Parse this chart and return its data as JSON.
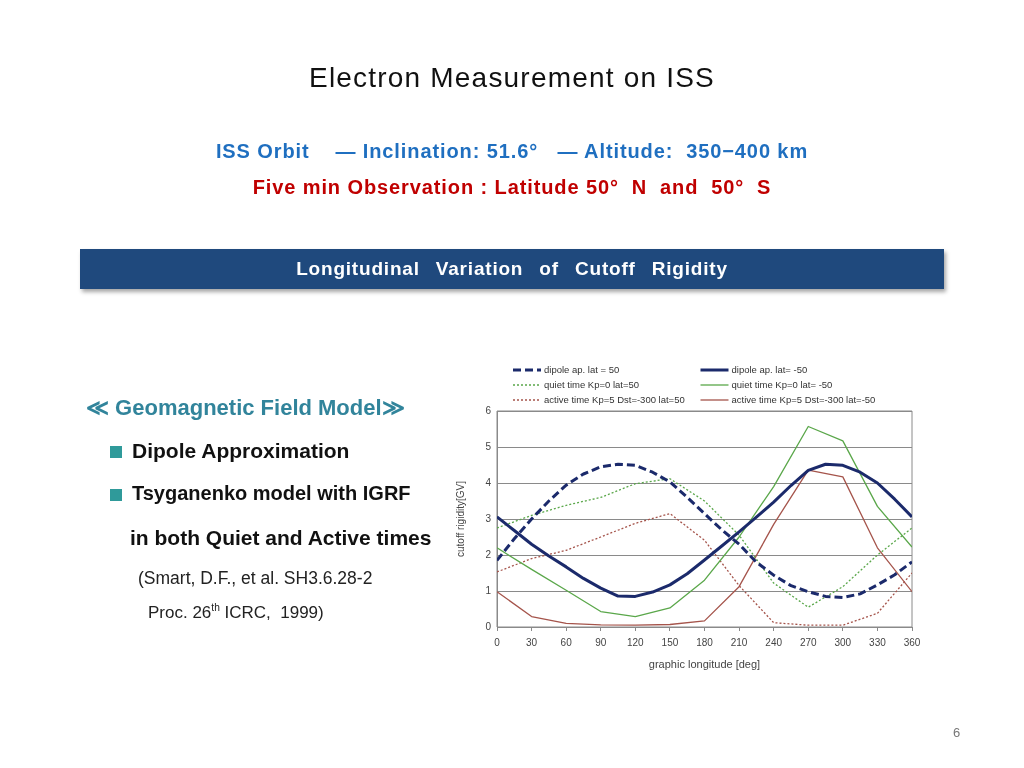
{
  "chart_data": {
    "type": "line",
    "title": "Electron Measurement on ISS",
    "subtitle": "Longitudinal Variation of Cutoff Rigidity",
    "xlabel": "graphic longitude [deg]",
    "ylabel": "cutoff rigidity[GV]",
    "xlim": [
      0,
      360
    ],
    "xticks": [
      0,
      30,
      60,
      90,
      120,
      150,
      180,
      210,
      240,
      270,
      300,
      330,
      360
    ],
    "ylim": [
      0,
      6
    ],
    "yticks": [
      0,
      1,
      2,
      3,
      4,
      5,
      6
    ],
    "grid": "y",
    "legend": "top",
    "marker": "none",
    "series": [
      {
        "name": "dipole ap. lat = 50",
        "color": "#1b2a6b",
        "line_style": "dashed",
        "x": [
          0,
          15,
          30,
          45,
          60,
          75,
          90,
          105,
          120,
          135,
          150,
          165,
          180,
          195,
          210,
          225,
          240,
          255,
          270,
          285,
          300,
          315,
          330,
          345,
          360
        ],
        "values": [
          1.85,
          2.45,
          3.0,
          3.5,
          3.94,
          4.25,
          4.45,
          4.52,
          4.49,
          4.3,
          4.03,
          3.6,
          3.15,
          2.7,
          2.3,
          1.8,
          1.44,
          1.15,
          0.98,
          0.85,
          0.82,
          0.92,
          1.17,
          1.45,
          1.81
        ]
      },
      {
        "name": "dipole ap. lat= -50",
        "color": "#1b2a6b",
        "line_style": "solid",
        "x": [
          0,
          15,
          30,
          45,
          60,
          75,
          90,
          105,
          120,
          135,
          150,
          165,
          180,
          195,
          210,
          225,
          240,
          255,
          270,
          285,
          300,
          315,
          330,
          345,
          360
        ],
        "values": [
          3.06,
          2.68,
          2.3,
          1.97,
          1.67,
          1.35,
          1.08,
          0.86,
          0.85,
          0.97,
          1.17,
          1.48,
          1.86,
          2.25,
          2.64,
          3.05,
          3.47,
          3.93,
          4.35,
          4.52,
          4.49,
          4.3,
          4.0,
          3.55,
          3.06
        ]
      },
      {
        "name": "quiet time Kp=0 lat=50",
        "color": "#5aa74a",
        "line_style": "dotted",
        "x": [
          0,
          30,
          60,
          90,
          120,
          150,
          180,
          210,
          240,
          270,
          300,
          330,
          360
        ],
        "values": [
          2.75,
          3.1,
          3.38,
          3.6,
          3.98,
          4.12,
          3.5,
          2.55,
          1.22,
          0.55,
          1.12,
          2.0,
          2.75
        ]
      },
      {
        "name": "quiet time Kp=0 lat= -50",
        "color": "#5aa74a",
        "line_style": "solid",
        "x": [
          0,
          30,
          60,
          90,
          120,
          150,
          180,
          210,
          240,
          270,
          300,
          330,
          360
        ],
        "values": [
          2.2,
          1.6,
          1.02,
          0.43,
          0.29,
          0.53,
          1.3,
          2.5,
          3.9,
          5.57,
          5.17,
          3.35,
          2.22
        ]
      },
      {
        "name": "active time Kp=5 Dst=-300 lat=50",
        "color": "#a5544b",
        "line_style": "dotted",
        "x": [
          0,
          30,
          60,
          90,
          120,
          150,
          180,
          210,
          240,
          270,
          300,
          330,
          360
        ],
        "values": [
          1.53,
          1.9,
          2.13,
          2.5,
          2.88,
          3.15,
          2.41,
          1.15,
          0.12,
          0.05,
          0.05,
          0.38,
          1.5
        ]
      },
      {
        "name": "active time Kp=5 Dst=-300 lat=-50",
        "color": "#a5544b",
        "line_style": "solid",
        "x": [
          0,
          30,
          60,
          90,
          120,
          150,
          180,
          210,
          240,
          270,
          300,
          330,
          360
        ],
        "values": [
          0.98,
          0.29,
          0.1,
          0.06,
          0.05,
          0.07,
          0.17,
          1.12,
          2.85,
          4.36,
          4.17,
          2.2,
          0.98
        ]
      }
    ],
    "annotations": [
      "ISS Orbit    — Inclination: 51.6°   — Altitude:  350−400 km",
      "Five min Observation : Latitude 50°  N  and  50°  S",
      "≪ Geomagnetic Field Model≫",
      "Dipole Approximation",
      "Tsyganenko model with IGRF",
      "in both Quiet and Active times",
      "(Smart, D.F., et al. SH3.6.28-2",
      "Proc. 26$^{th}$ ICRC,  1999)",
      "6"
    ]
  }
}
